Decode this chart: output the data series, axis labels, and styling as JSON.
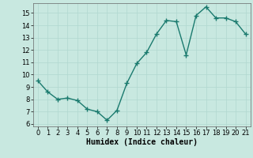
{
  "x": [
    0,
    1,
    2,
    3,
    4,
    5,
    6,
    7,
    8,
    9,
    10,
    11,
    12,
    13,
    14,
    15,
    16,
    17,
    18,
    19,
    20,
    21
  ],
  "y": [
    9.5,
    8.6,
    8.0,
    8.1,
    7.9,
    7.2,
    7.0,
    6.3,
    7.1,
    9.3,
    10.9,
    11.8,
    13.3,
    14.4,
    14.3,
    11.6,
    14.8,
    15.5,
    14.6,
    14.6,
    14.3,
    13.3
  ],
  "line_color": "#1a7a6e",
  "marker_color": "#1a7a6e",
  "bg_color": "#c8e8e0",
  "grid_color": "#b0d8d0",
  "xlabel": "Humidex (Indice chaleur)",
  "xlabel_fontsize": 7,
  "xlim": [
    -0.5,
    21.5
  ],
  "ylim": [
    5.8,
    15.8
  ],
  "yticks": [
    6,
    7,
    8,
    9,
    10,
    11,
    12,
    13,
    14,
    15
  ],
  "xticks": [
    0,
    1,
    2,
    3,
    4,
    5,
    6,
    7,
    8,
    9,
    10,
    11,
    12,
    13,
    14,
    15,
    16,
    17,
    18,
    19,
    20,
    21
  ],
  "tick_fontsize": 6,
  "line_width": 1.0,
  "marker_size": 2.5
}
